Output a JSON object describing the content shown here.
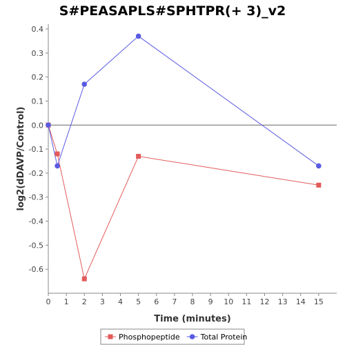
{
  "chart_data": {
    "type": "line",
    "title": "S#PEASAPLS#SPHTPR(+ 3)_v2",
    "xlabel": "Time (minutes)",
    "ylabel": "log2(dDAVP/Control)",
    "x": [
      0,
      0.5,
      2,
      5,
      15
    ],
    "xlim": [
      0,
      16
    ],
    "ylim": [
      -0.7,
      0.42
    ],
    "xticks": [
      0,
      1,
      2,
      3,
      4,
      5,
      6,
      7,
      8,
      9,
      10,
      11,
      12,
      13,
      14,
      15
    ],
    "yticks": [
      0.4,
      0.3,
      0.2,
      0.1,
      0.0,
      -0.1,
      -0.2,
      -0.3,
      -0.4,
      -0.5,
      -0.6
    ],
    "ytick_labels": [
      "0.4",
      "0.3",
      "0.2",
      "0.1",
      "0.0",
      "-0.1",
      "-0.2",
      "-0.3",
      "-0.4",
      "-0.5",
      "-0.6"
    ],
    "zero_line": true,
    "grid": false,
    "legend_position": "bottom",
    "series": [
      {
        "name": "Phosphopeptide",
        "values": [
          0.0,
          -0.12,
          -0.64,
          -0.13,
          -0.25
        ],
        "color": "#e35a5a",
        "marker": "square"
      },
      {
        "name": "Total Protein",
        "values": [
          0.0,
          -0.17,
          0.17,
          0.37,
          -0.17
        ],
        "color": "#5a5ae3",
        "marker": "circle"
      }
    ]
  }
}
